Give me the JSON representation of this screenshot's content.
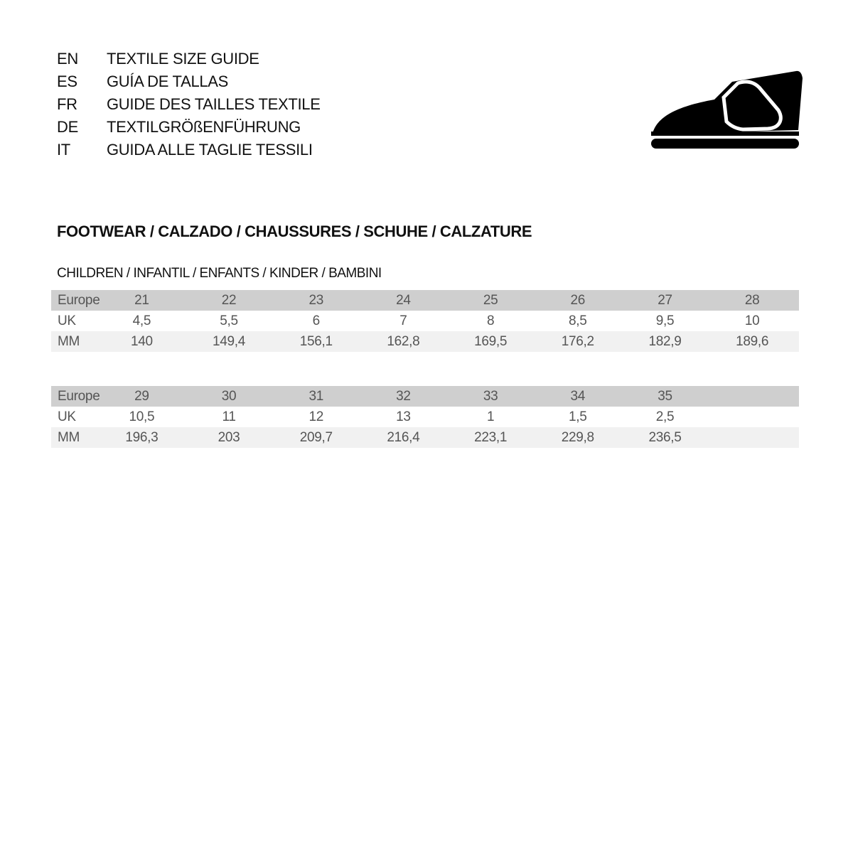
{
  "languages": [
    {
      "code": "EN",
      "title": "TEXTILE SIZE GUIDE"
    },
    {
      "code": "ES",
      "title": "GUÍA DE TALLAS"
    },
    {
      "code": "FR",
      "title": "GUIDE DES TAILLES TEXTILE"
    },
    {
      "code": "DE",
      "title": "TEXTILGRÖßENFÜHRUNG"
    },
    {
      "code": "IT",
      "title": "GUIDA ALLE TAGLIE TESSILI"
    }
  ],
  "icon": "shoe-icon",
  "section_title": "FOOTWEAR / CALZADO / CHAUSSURES / SCHUHE / CALZATURE",
  "subsection_title": "CHILDREN / INFANTIL / ENFANTS / KINDER / BAMBINI",
  "colors": {
    "header_row": "#cfcfcf",
    "alt_row": "#f1f1f1",
    "text": "#555555"
  },
  "tables": [
    {
      "labels": [
        "Europe",
        "UK",
        "MM"
      ],
      "europe": [
        "21",
        "22",
        "23",
        "24",
        "25",
        "26",
        "27",
        "28"
      ],
      "uk": [
        "4,5",
        "5,5",
        "6",
        "7",
        "8",
        "8,5",
        "9,5",
        "10"
      ],
      "mm": [
        "140",
        "149,4",
        "156,1",
        "162,8",
        "169,5",
        "176,2",
        "182,9",
        "189,6"
      ]
    },
    {
      "labels": [
        "Europe",
        "UK",
        "MM"
      ],
      "europe": [
        "29",
        "30",
        "31",
        "32",
        "33",
        "34",
        "35"
      ],
      "uk": [
        "10,5",
        "11",
        "12",
        "13",
        "1",
        "1,5",
        "2,5"
      ],
      "mm": [
        "196,3",
        "203",
        "209,7",
        "216,4",
        "223,1",
        "229,8",
        "236,5"
      ]
    }
  ]
}
